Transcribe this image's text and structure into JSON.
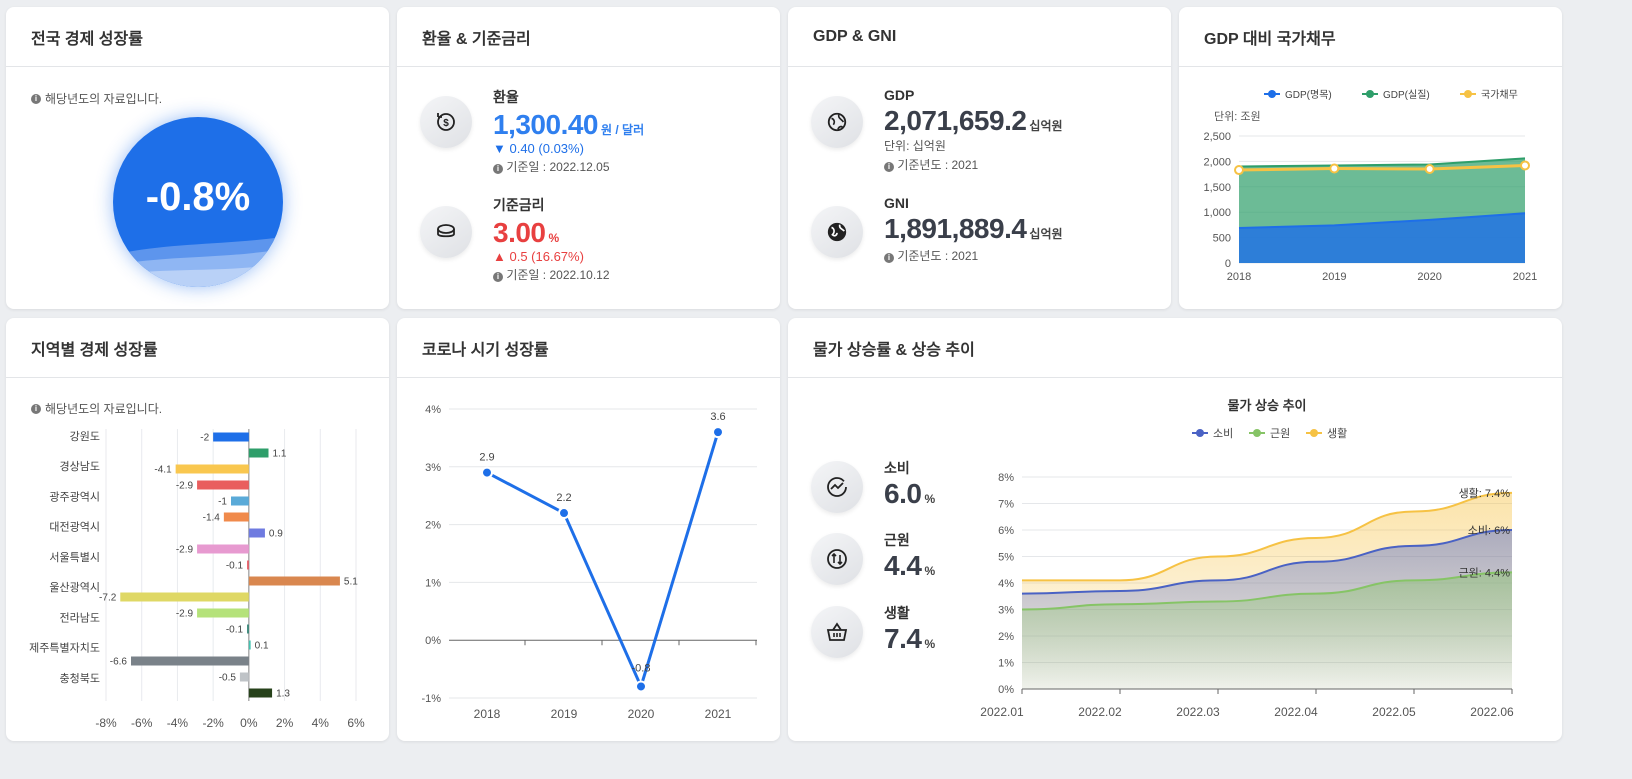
{
  "growth": {
    "title": "전국 경제 성장률",
    "note": "해당년도의 자료입니다.",
    "value": "-0.8%"
  },
  "fx": {
    "title": "환율 & 기준금리",
    "exchange": {
      "label": "환율",
      "value": "1,300.40",
      "unit": "원 / 달러",
      "change": "▼ 0.40 (0.03%)",
      "date": "기준일 : 2022.12.05"
    },
    "rate": {
      "label": "기준금리",
      "value": "3.00",
      "unit": "%",
      "change": "▲ 0.5 (16.67%)",
      "date": "기준일 : 2022.10.12"
    }
  },
  "gdp": {
    "title": "GDP & GNI",
    "gdp": {
      "label": "GDP",
      "value": "2,071,659.2",
      "unit": "십억원",
      "unit_note": "단위: 십억원",
      "year": "기준년도 : 2021"
    },
    "gni": {
      "label": "GNI",
      "value": "1,891,889.4",
      "unit": "십억원",
      "year": "기준년도 : 2021"
    }
  },
  "debt": {
    "title": "GDP 대비 국가채무"
  },
  "regional": {
    "title": "지역별 경제 성장률",
    "note": "해당년도의 자료입니다."
  },
  "corona": {
    "title": "코로나 시기 성장률"
  },
  "price": {
    "title": "물가 상승률 & 상승 추이",
    "items": [
      {
        "label": "소비",
        "value": "6.0",
        "unit": "%"
      },
      {
        "label": "근원",
        "value": "4.4",
        "unit": "%"
      },
      {
        "label": "생활",
        "value": "7.4",
        "unit": "%"
      }
    ]
  },
  "chart_data": [
    {
      "id": "debt",
      "type": "area",
      "title": "",
      "ylabel": "단위: 조원",
      "x": [
        "2018",
        "2019",
        "2020",
        "2021"
      ],
      "ylim": [
        0,
        2500
      ],
      "yticks": [
        "0",
        "500",
        "1,000",
        "1,500",
        "2,000",
        "2,500"
      ],
      "legend_position": "top",
      "series": [
        {
          "name": "GDP(명목)",
          "values": [
            690,
            740,
            850,
            980
          ],
          "color": "#1e6fe8"
        },
        {
          "name": "GDP(실질)",
          "values": [
            1900,
            1920,
            1940,
            2060
          ],
          "color": "#2e9e6a"
        },
        {
          "name": "국가채무",
          "values": [
            1830,
            1860,
            1850,
            1920
          ],
          "color": "#f6c244"
        }
      ]
    },
    {
      "id": "regional",
      "type": "bar",
      "orientation": "horizontal",
      "categories": [
        "강원도",
        "경상남도",
        "광주광역시",
        "대전광역시",
        "서울특별시",
        "울산광역시",
        "전라남도",
        "제주특별자치도",
        "충청북도"
      ],
      "xticks": [
        "-8%",
        "-6%",
        "-4%",
        "-2%",
        "0%",
        "2%",
        "4%",
        "6%"
      ],
      "xlim": [
        -8,
        6
      ],
      "bars": [
        {
          "value": -2,
          "label": "-2",
          "color": "#1e6fe8"
        },
        {
          "value": 1.1,
          "label": "1.1",
          "color": "#2e9e6a"
        },
        {
          "value": -4.1,
          "label": "-4.1",
          "color": "#f9c74f"
        },
        {
          "value": -2.9,
          "label": "-2.9",
          "color": "#e95e5e"
        },
        {
          "value": -1,
          "label": "-1",
          "color": "#5aaad8"
        },
        {
          "value": -1.4,
          "label": "-1.4",
          "color": "#f08a4b"
        },
        {
          "value": 0.9,
          "label": "0.9",
          "color": "#6f7be0"
        },
        {
          "value": -2.9,
          "label": "-2.9",
          "color": "#e79ad0"
        },
        {
          "value": -0.1,
          "label": "-0.1",
          "color": "#e8606b"
        },
        {
          "value": 5.1,
          "label": "5.1",
          "color": "#d9874f"
        },
        {
          "value": -7.2,
          "label": "-7.2",
          "color": "#dfd865"
        },
        {
          "value": -2.9,
          "label": "-2.9",
          "color": "#b5e27a"
        },
        {
          "value": -0.1,
          "label": "-0.1",
          "color": "#39887a"
        },
        {
          "value": 0.1,
          "label": "0.1",
          "color": "#44c2b0"
        },
        {
          "value": -6.6,
          "label": "-6.6",
          "color": "#7a8289"
        },
        {
          "value": -0.5,
          "label": "-0.5",
          "color": "#bfc3c7"
        },
        {
          "value": 1.3,
          "label": "1.3",
          "color": "#27421b"
        }
      ]
    },
    {
      "id": "corona",
      "type": "line",
      "x": [
        "2018",
        "2019",
        "2020",
        "2021"
      ],
      "values": [
        2.9,
        2.2,
        -0.8,
        3.6
      ],
      "labels": [
        "2.9",
        "2.2",
        "-0.8",
        "3.6"
      ],
      "ylim": [
        -1,
        4
      ],
      "yticks": [
        "-1%",
        "0%",
        "1%",
        "2%",
        "3%",
        "4%"
      ],
      "color": "#1e6fe8"
    },
    {
      "id": "price",
      "type": "area",
      "title": "물가 상승 추이",
      "x": [
        "2022.01",
        "2022.02",
        "2022.03",
        "2022.04",
        "2022.05",
        "2022.06"
      ],
      "ylim": [
        0,
        8
      ],
      "yticks": [
        "0%",
        "1%",
        "2%",
        "3%",
        "4%",
        "5%",
        "6%",
        "7%",
        "8%"
      ],
      "legend_position": "top",
      "series": [
        {
          "name": "소비",
          "values": [
            3.6,
            3.7,
            4.1,
            4.8,
            5.4,
            6.0
          ],
          "color": "#4a62c4",
          "end_label": "소비: 6%"
        },
        {
          "name": "근원",
          "values": [
            3.0,
            3.2,
            3.3,
            3.6,
            4.1,
            4.4
          ],
          "color": "#86c466",
          "end_label": "근원: 4.4%"
        },
        {
          "name": "생활",
          "values": [
            4.1,
            4.1,
            5.0,
            5.7,
            6.7,
            7.4
          ],
          "color": "#f6c244",
          "end_label": "생활: 7.4%"
        }
      ]
    }
  ]
}
